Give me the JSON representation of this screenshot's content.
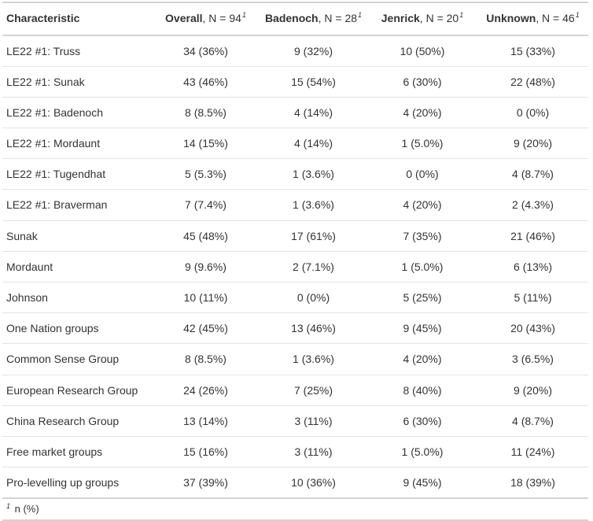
{
  "chart_data": {
    "type": "table",
    "header": {
      "characteristic": "Characteristic",
      "groups": [
        {
          "label": "Overall",
          "n_text": ", N = 94",
          "footnote_mark": "1"
        },
        {
          "label": "Badenoch",
          "n_text": ", N = 28",
          "footnote_mark": "1"
        },
        {
          "label": "Jenrick",
          "n_text": ", N = 20",
          "footnote_mark": "1"
        },
        {
          "label": "Unknown",
          "n_text": ", N = 46",
          "footnote_mark": "1"
        }
      ]
    },
    "rows": [
      {
        "label": "LE22 #1: Truss",
        "values": [
          "34 (36%)",
          "9 (32%)",
          "10 (50%)",
          "15 (33%)"
        ]
      },
      {
        "label": "LE22 #1: Sunak",
        "values": [
          "43 (46%)",
          "15 (54%)",
          "6 (30%)",
          "22 (48%)"
        ]
      },
      {
        "label": "LE22 #1: Badenoch",
        "values": [
          "8 (8.5%)",
          "4 (14%)",
          "4 (20%)",
          "0 (0%)"
        ]
      },
      {
        "label": "LE22 #1: Mordaunt",
        "values": [
          "14 (15%)",
          "4 (14%)",
          "1 (5.0%)",
          "9 (20%)"
        ]
      },
      {
        "label": "LE22 #1: Tugendhat",
        "values": [
          "5 (5.3%)",
          "1 (3.6%)",
          "0 (0%)",
          "4 (8.7%)"
        ]
      },
      {
        "label": "LE22 #1: Braverman",
        "values": [
          "7 (7.4%)",
          "1 (3.6%)",
          "4 (20%)",
          "2 (4.3%)"
        ]
      },
      {
        "label": "Sunak",
        "values": [
          "45 (48%)",
          "17 (61%)",
          "7 (35%)",
          "21 (46%)"
        ]
      },
      {
        "label": "Mordaunt",
        "values": [
          "9 (9.6%)",
          "2 (7.1%)",
          "1 (5.0%)",
          "6 (13%)"
        ]
      },
      {
        "label": "Johnson",
        "values": [
          "10 (11%)",
          "0 (0%)",
          "5 (25%)",
          "5 (11%)"
        ]
      },
      {
        "label": "One Nation groups",
        "values": [
          "42 (45%)",
          "13 (46%)",
          "9 (45%)",
          "20 (43%)"
        ]
      },
      {
        "label": "Common Sense Group",
        "values": [
          "8 (8.5%)",
          "1 (3.6%)",
          "4 (20%)",
          "3 (6.5%)"
        ]
      },
      {
        "label": "European Research Group",
        "values": [
          "24 (26%)",
          "7 (25%)",
          "8 (40%)",
          "9 (20%)"
        ]
      },
      {
        "label": "China Research Group",
        "values": [
          "13 (14%)",
          "3 (11%)",
          "6 (30%)",
          "4 (8.7%)"
        ]
      },
      {
        "label": "Free market groups",
        "values": [
          "15 (16%)",
          "3 (11%)",
          "1 (5.0%)",
          "11 (24%)"
        ]
      },
      {
        "label": "Pro-levelling up groups",
        "values": [
          "37 (39%)",
          "10 (36%)",
          "9 (45%)",
          "18 (39%)"
        ]
      }
    ],
    "footnote": {
      "mark": "1",
      "text": "n (%)"
    }
  },
  "colors": {
    "text": "#333333",
    "border": "#d3d3d3",
    "row_divider": "#e3e3e3",
    "background": "#ffffff"
  }
}
